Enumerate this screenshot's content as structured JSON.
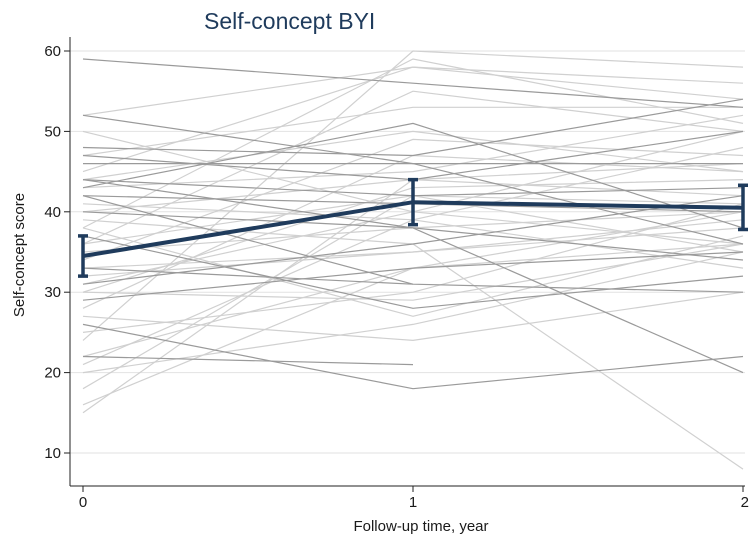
{
  "chart_data": {
    "type": "line",
    "title": "Self-concept BYI",
    "xlabel": "Follow-up time, year",
    "ylabel": "Self-concept score",
    "x": [
      0,
      1,
      2
    ],
    "x_ticks": [
      "0",
      "1",
      "2"
    ],
    "y_ticks": [
      "10",
      "20",
      "30",
      "40",
      "50",
      "60"
    ],
    "ylim": [
      6,
      62
    ],
    "grid": "horizontal",
    "colors": {
      "mean_line": "#1f3b5c",
      "individual_light": "#d0d0d0",
      "individual_dark": "#9a9a9a",
      "grid": "#e2e2e2",
      "title": "#1f3b5c"
    },
    "mean": {
      "values": [
        34.5,
        41.2,
        40.5
      ],
      "ci_low": [
        32.0,
        38.4,
        37.8
      ],
      "ci_high": [
        37.0,
        44.0,
        43.3
      ]
    },
    "individual_dark": [
      [
        59,
        56,
        53
      ],
      [
        52,
        46,
        36
      ],
      [
        43,
        51,
        38
      ],
      [
        48,
        47,
        54
      ],
      [
        44,
        38,
        20
      ],
      [
        42,
        41,
        40
      ],
      [
        37,
        28,
        32
      ],
      [
        33,
        31,
        30
      ],
      [
        26,
        18,
        22
      ],
      [
        46,
        46,
        46
      ],
      [
        40,
        38,
        34
      ],
      [
        31,
        36,
        42
      ],
      [
        44,
        42,
        43
      ],
      [
        29,
        33,
        35
      ],
      [
        47,
        44,
        50
      ],
      [
        42,
        31,
        null
      ],
      [
        22,
        21,
        null
      ]
    ],
    "individual_light": [
      [
        16,
        33,
        36
      ],
      [
        20,
        26,
        35
      ],
      [
        24,
        60,
        58
      ],
      [
        28,
        47,
        45
      ],
      [
        30,
        29,
        36
      ],
      [
        32,
        35,
        38
      ],
      [
        35,
        38,
        40
      ],
      [
        38,
        59,
        51
      ],
      [
        40,
        44,
        42
      ],
      [
        45,
        58,
        54
      ],
      [
        50,
        40,
        36
      ],
      [
        52,
        58,
        56
      ],
      [
        34,
        49,
        47
      ],
      [
        27,
        24,
        30
      ],
      [
        21,
        39,
        48
      ],
      [
        33,
        35,
        39
      ],
      [
        43,
        45,
        52
      ],
      [
        18,
        42,
        41
      ],
      [
        36,
        55,
        50
      ],
      [
        41,
        39,
        33
      ],
      [
        30,
        43,
        44
      ],
      [
        25,
        30,
        41
      ],
      [
        39,
        36,
        8
      ],
      [
        15,
        44,
        46
      ],
      [
        47,
        53,
        53
      ],
      [
        22,
        33,
        40
      ],
      [
        38,
        27,
        37
      ],
      [
        31,
        40,
        50
      ],
      [
        44,
        50,
        45
      ],
      [
        36,
        42,
        35
      ]
    ]
  }
}
